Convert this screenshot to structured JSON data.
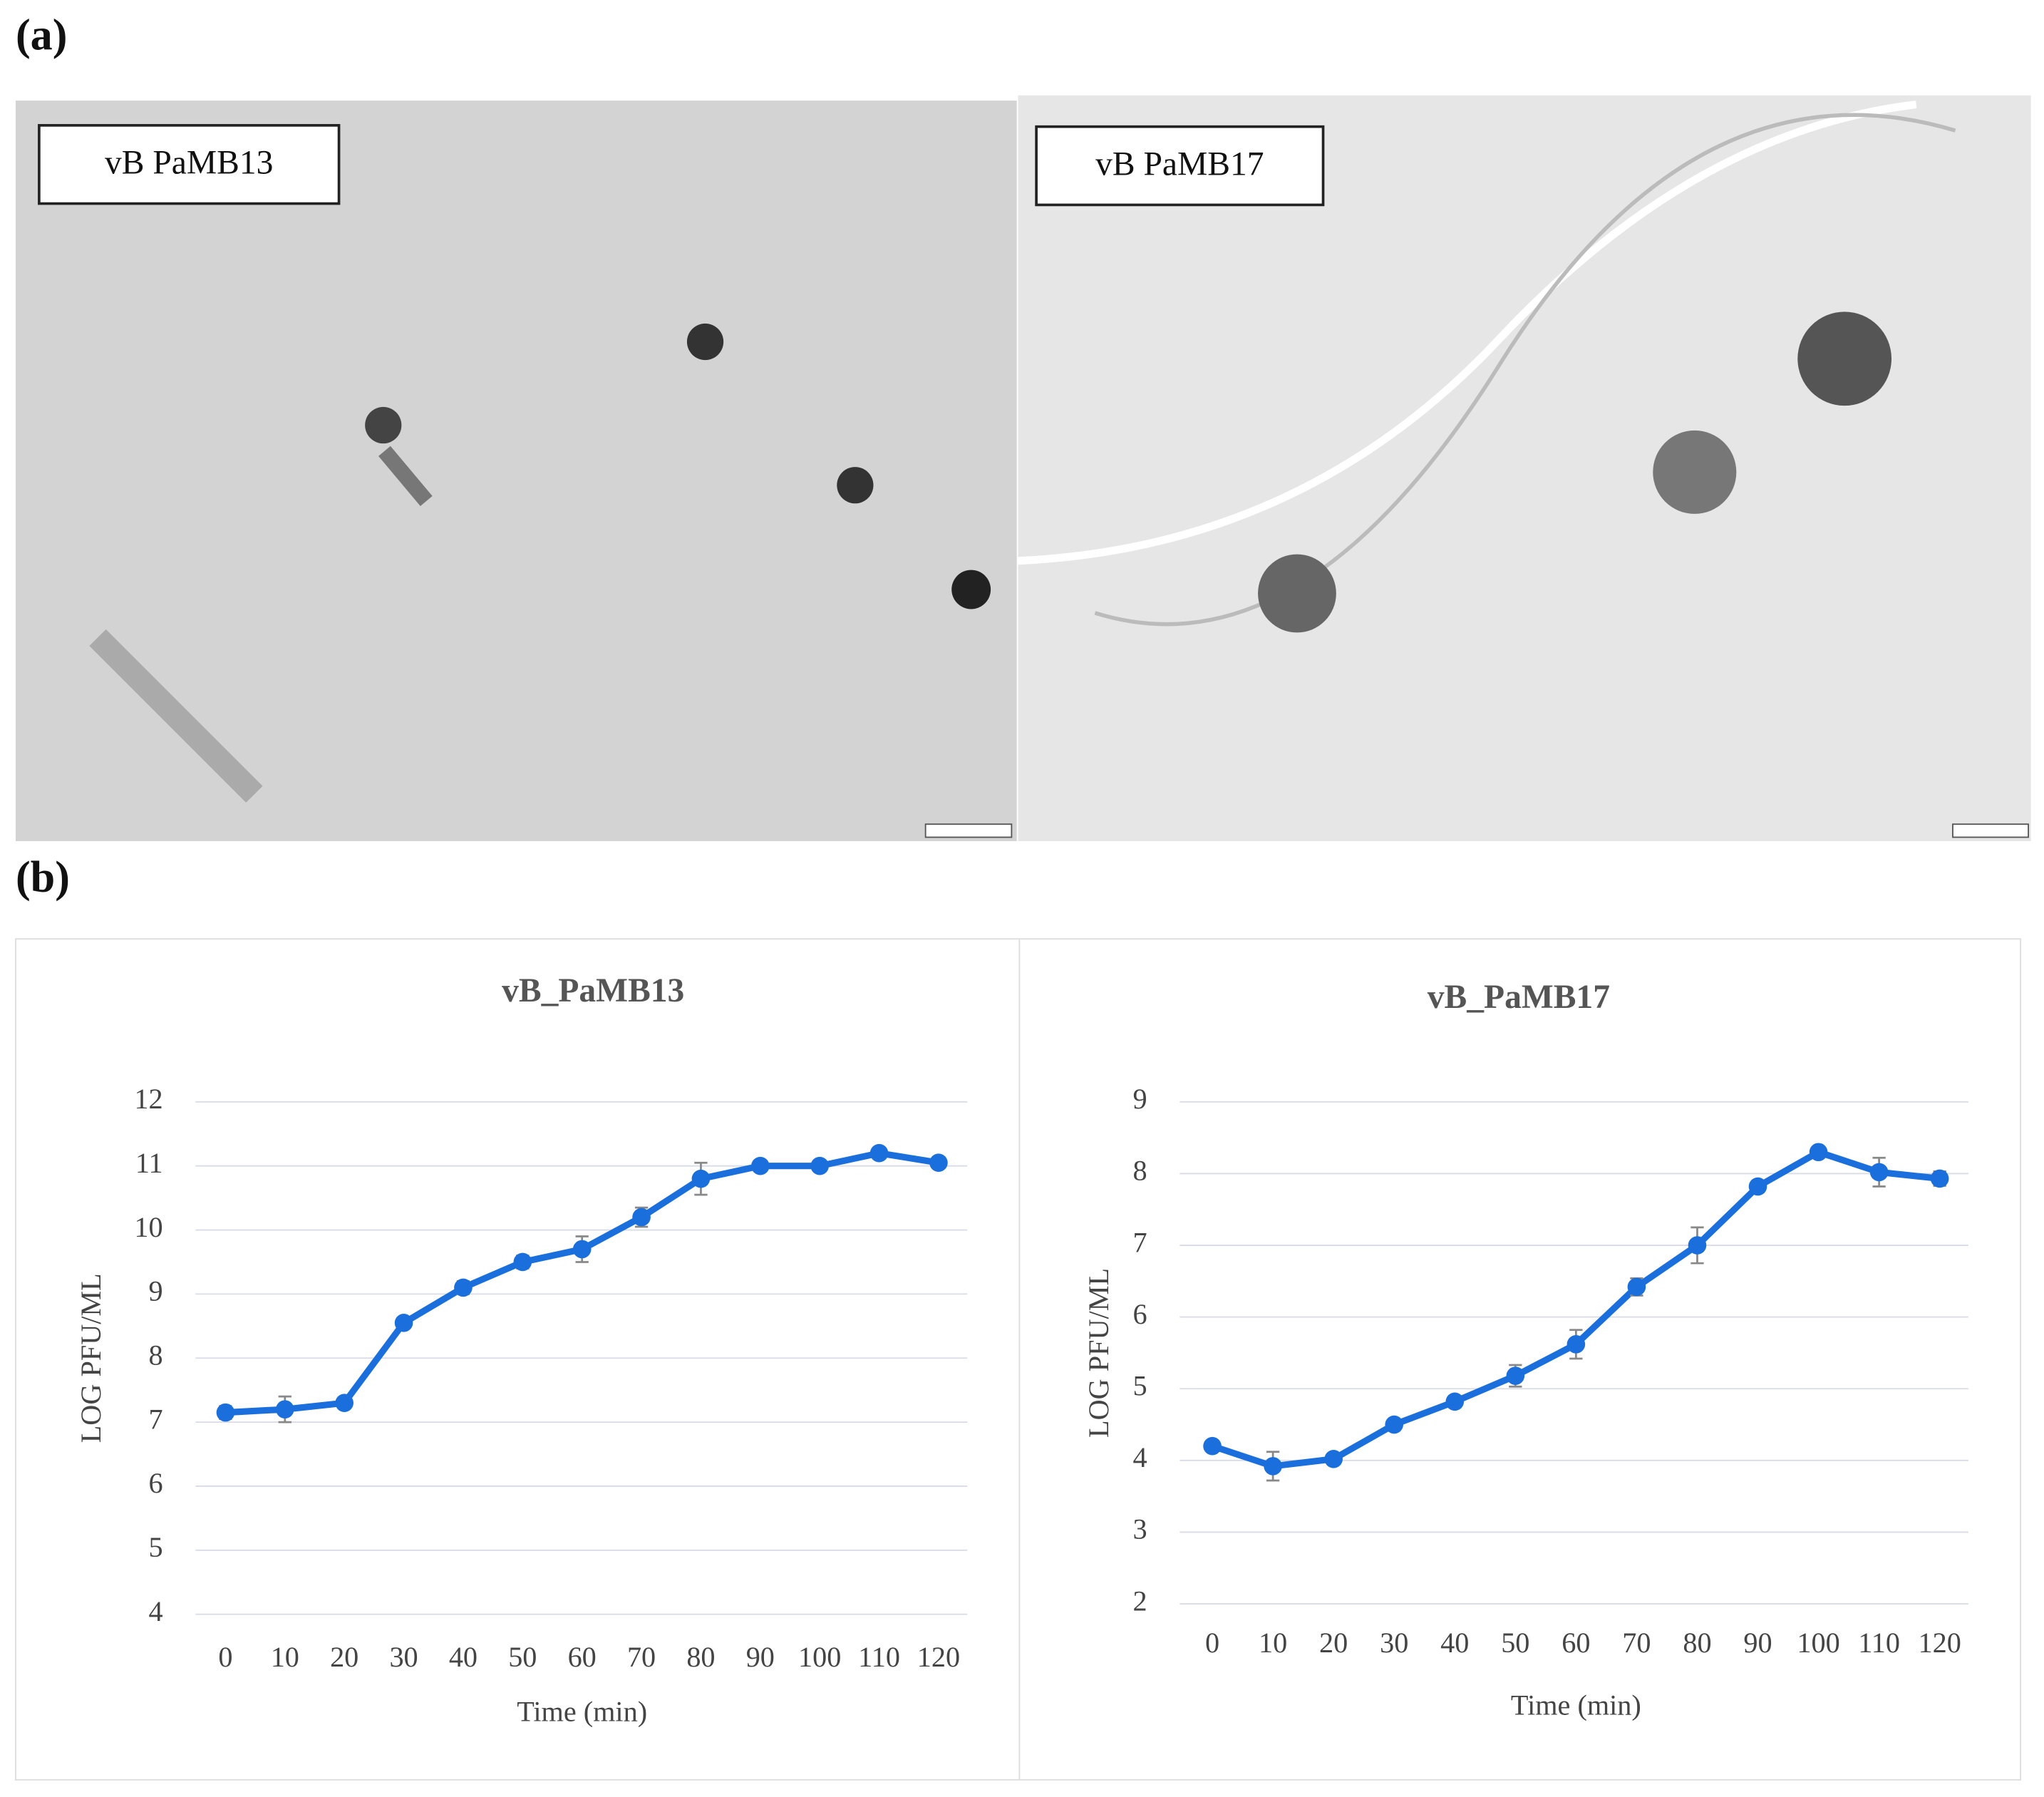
{
  "panels": {
    "a": "(a)",
    "b": "(b)"
  },
  "micrographs": [
    {
      "label": "vB  PaMB13"
    },
    {
      "label": "vB  PaMB17"
    }
  ],
  "chart_data": [
    {
      "type": "line",
      "title": "vB_PaMB13",
      "x_label": "Time (min)",
      "y_label": "LOG PFU/ML",
      "categories": [
        0,
        10,
        20,
        30,
        40,
        50,
        60,
        70,
        80,
        90,
        100,
        110,
        120
      ],
      "values": [
        7.15,
        7.2,
        7.3,
        8.55,
        9.1,
        9.5,
        9.7,
        10.2,
        10.8,
        11.0,
        11.0,
        11.2,
        11.05
      ],
      "errors": [
        0.1,
        0.2,
        0.05,
        0.05,
        0.1,
        0.1,
        0.2,
        0.15,
        0.25,
        0.05,
        0.05,
        0.05,
        0.05
      ],
      "color": "#1a6fdc",
      "ylim": [
        4,
        12
      ],
      "yticks": [
        4,
        5,
        6,
        7,
        8,
        9,
        10,
        11,
        12
      ],
      "grid": true
    },
    {
      "type": "line",
      "title": "vB_PaMB17",
      "x_label": "Time (min)",
      "y_label": "LOG PFU/ML",
      "categories": [
        0,
        10,
        20,
        30,
        40,
        50,
        60,
        70,
        80,
        90,
        100,
        110,
        120
      ],
      "values": [
        4.2,
        3.92,
        4.02,
        4.5,
        4.82,
        5.18,
        5.62,
        6.42,
        7.0,
        7.82,
        8.3,
        8.02,
        7.93
      ],
      "errors": [
        0.05,
        0.2,
        0.05,
        0.05,
        0.08,
        0.15,
        0.2,
        0.12,
        0.25,
        0.08,
        0.05,
        0.2,
        0.1
      ],
      "color": "#1a6fdc",
      "ylim": [
        2,
        9
      ],
      "yticks": [
        2,
        3,
        4,
        5,
        6,
        7,
        8,
        9
      ],
      "grid": true
    }
  ]
}
